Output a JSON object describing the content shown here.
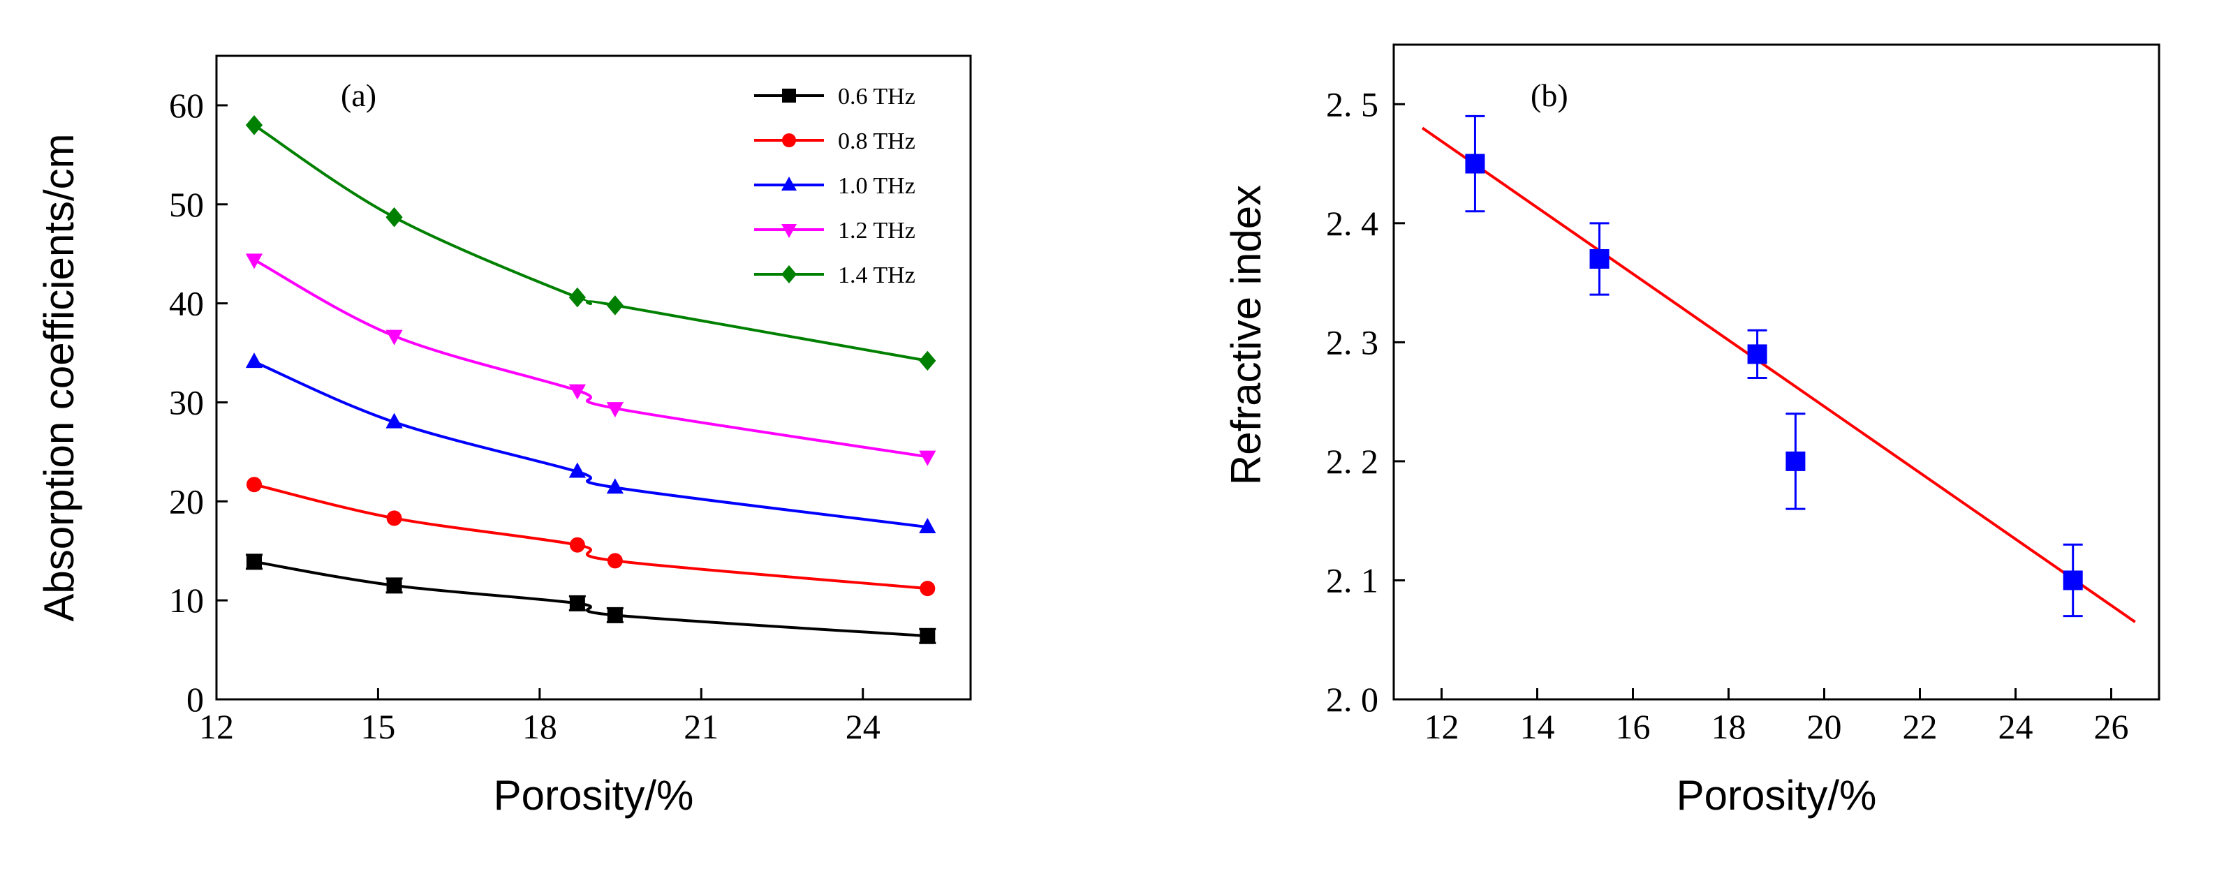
{
  "chart_data": [
    {
      "type": "line",
      "panel_label": "(a)",
      "title": "",
      "xlabel": "Porosity/%",
      "ylabel": "Absorption coefficients/cm",
      "xlim": [
        12,
        26
      ],
      "ylim": [
        0,
        65
      ],
      "xticks": [
        12,
        15,
        18,
        21,
        24
      ],
      "yticks": [
        0,
        10,
        20,
        30,
        40,
        50,
        60
      ],
      "x": [
        12.7,
        15.3,
        18.7,
        19.4,
        25.2
      ],
      "legend_position": "top-right",
      "series": [
        {
          "name": "0.6 THz",
          "color": "#000000",
          "marker": "square",
          "values": [
            13.9,
            11.5,
            9.7,
            8.5,
            6.4
          ]
        },
        {
          "name": "0.8 THz",
          "color": "#ff0000",
          "marker": "circle",
          "values": [
            21.7,
            18.3,
            15.6,
            14.0,
            11.2
          ]
        },
        {
          "name": "1.0 THz",
          "color": "#0000ff",
          "marker": "triangle-up",
          "values": [
            34.1,
            28.0,
            23.0,
            21.4,
            17.4
          ]
        },
        {
          "name": "1.2 THz",
          "color": "#ff00ff",
          "marker": "triangle-down",
          "values": [
            44.4,
            36.7,
            31.2,
            29.4,
            24.5
          ]
        },
        {
          "name": "1.4 THz",
          "color": "#008000",
          "marker": "diamond",
          "values": [
            58.0,
            48.7,
            40.6,
            39.8,
            34.2
          ]
        }
      ]
    },
    {
      "type": "scatter",
      "panel_label": "(b)",
      "title": "",
      "xlabel": "Porosity/%",
      "ylabel": "Refractive index",
      "xlim": [
        11,
        27
      ],
      "ylim": [
        2.0,
        2.55
      ],
      "xticks": [
        12,
        14,
        16,
        18,
        20,
        22,
        24,
        26
      ],
      "yticks": [
        "2. 0",
        "2. 1",
        "2. 2",
        "2. 3",
        "2. 4",
        "2. 5"
      ],
      "ytick_values": [
        2.0,
        2.1,
        2.2,
        2.3,
        2.4,
        2.5
      ],
      "points": {
        "color": "#0000ff",
        "marker": "square",
        "x": [
          12.7,
          15.3,
          18.6,
          19.4,
          25.2
        ],
        "y": [
          2.45,
          2.37,
          2.29,
          2.2,
          2.1
        ],
        "err": [
          0.04,
          0.03,
          0.02,
          0.04,
          0.03
        ]
      },
      "fit_line": {
        "color": "#ff0000",
        "x": [
          11.6,
          26.5
        ],
        "y": [
          2.48,
          2.065
        ]
      }
    }
  ]
}
